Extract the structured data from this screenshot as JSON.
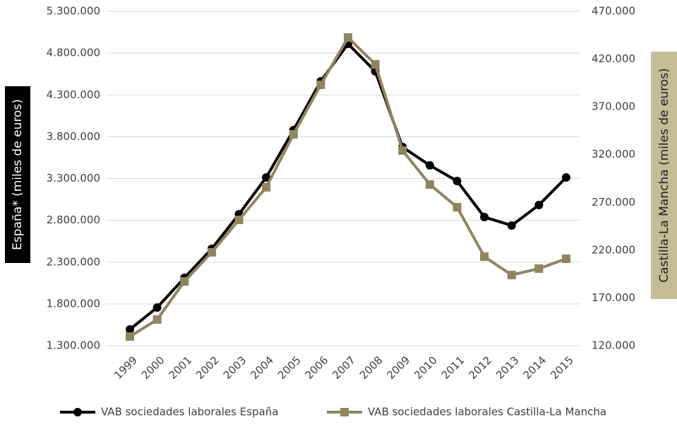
{
  "chart_data": {
    "type": "line",
    "categories": [
      "1999",
      "2000",
      "2001",
      "2002",
      "2003",
      "2004",
      "2005",
      "2006",
      "2007",
      "2008",
      "2009",
      "2010",
      "2011",
      "2012",
      "2013",
      "2014",
      "2015"
    ],
    "ylabel": "España* (miles de euros)",
    "y2label": "Castilla-La Mancha (miles de euros)",
    "ylim": [
      1300000,
      5300000
    ],
    "yticks": [
      {
        "value": 1300000,
        "label": "1.300.000"
      },
      {
        "value": 1800000,
        "label": "1.800.000"
      },
      {
        "value": 2300000,
        "label": "2.300.000"
      },
      {
        "value": 2800000,
        "label": "2.800.000"
      },
      {
        "value": 3300000,
        "label": "3.300.000"
      },
      {
        "value": 3800000,
        "label": "3.800.000"
      },
      {
        "value": 4300000,
        "label": "4.300.000"
      },
      {
        "value": 4800000,
        "label": "4.800.000"
      },
      {
        "value": 5300000,
        "label": "5.300.000"
      }
    ],
    "y2lim": [
      120000,
      470000
    ],
    "y2ticks": [
      {
        "value": 120000,
        "label": "120.000"
      },
      {
        "value": 170000,
        "label": "170.000"
      },
      {
        "value": 220000,
        "label": "220.000"
      },
      {
        "value": 270000,
        "label": "270.000"
      },
      {
        "value": 320000,
        "label": "320.000"
      },
      {
        "value": 370000,
        "label": "370.000"
      },
      {
        "value": 420000,
        "label": "420.000"
      },
      {
        "value": 470000,
        "label": "470.000"
      }
    ],
    "grid": true,
    "legend": "bottom",
    "series": [
      {
        "name": "VAB sociedades laborales España",
        "color": "#000000",
        "marker": "circle",
        "values": [
          1495000,
          1757000,
          2112000,
          2459000,
          2873000,
          3313000,
          3879000,
          4463000,
          4911000,
          4581000,
          3676000,
          3457000,
          3270000,
          2839000,
          2738000,
          2983000,
          3313000
        ]
      },
      {
        "name": "VAB sociedades laborales Castilla-La Mancha",
        "color": "#8f8660",
        "marker": "square",
        "axis": "y2",
        "values": [
          129600,
          147400,
          187300,
          217700,
          251700,
          285800,
          341300,
          393100,
          442600,
          414500,
          324300,
          288700,
          265000,
          213200,
          194000,
          200700,
          211000
        ]
      }
    ]
  }
}
